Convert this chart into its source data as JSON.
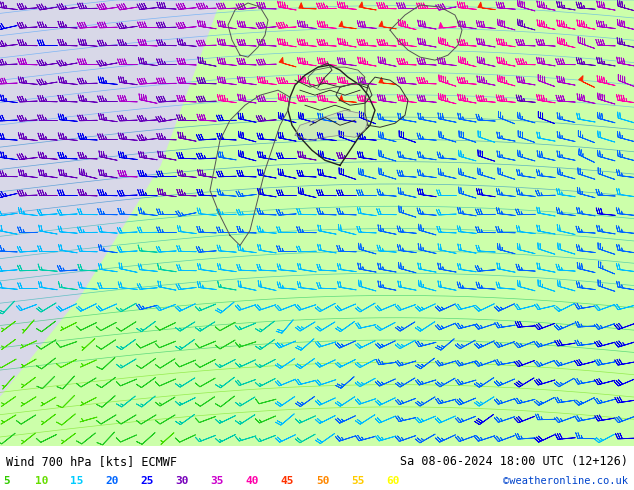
{
  "title_left": "Wind 700 hPa [kts] ECMWF",
  "title_right": "Sa 08-06-2024 18:00 UTC (12+126)",
  "credit": "©weatheronline.co.uk",
  "legend_values": [
    5,
    10,
    15,
    20,
    25,
    30,
    35,
    40,
    45,
    50,
    55,
    60
  ],
  "legend_colors": [
    "#33cc00",
    "#66dd00",
    "#00ccff",
    "#0066ff",
    "#0000ff",
    "#7700bb",
    "#cc00cc",
    "#ff00aa",
    "#ff3300",
    "#ff8800",
    "#ffcc00",
    "#ffff00"
  ],
  "bg_color": "#ffffff",
  "bottom_bar_color": "#ccffcc",
  "land_color_light": "#ccffaa",
  "land_color_green": "#aaff66",
  "sea_color": "#e8e8f0",
  "figsize": [
    6.34,
    4.9
  ],
  "dpi": 100
}
